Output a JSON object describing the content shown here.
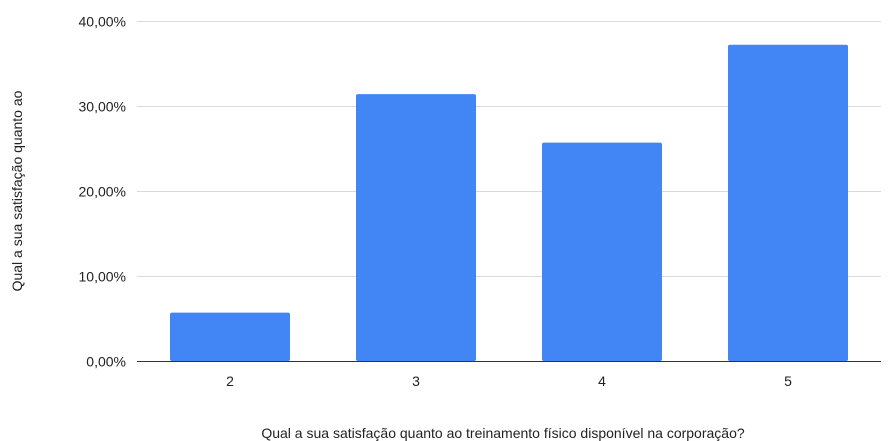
{
  "chart_data": {
    "type": "bar",
    "title": "",
    "xlabel": "Qual a sua satisfação quanto ao treinamento físico disponível na corporação?",
    "ylabel": "Qual a sua satisfação quanto ao",
    "categories": [
      "2",
      "3",
      "4",
      "5"
    ],
    "values": [
      5.7,
      31.4,
      25.7,
      37.2
    ],
    "ylim": [
      0,
      40
    ],
    "yticks": [
      0,
      10,
      20,
      30,
      40
    ],
    "ytick_labels": [
      "0,00%",
      "10,00%",
      "20,00%",
      "30,00%",
      "40,00%"
    ],
    "grid": true,
    "legend": "none",
    "bar_color": "#4285f4"
  }
}
